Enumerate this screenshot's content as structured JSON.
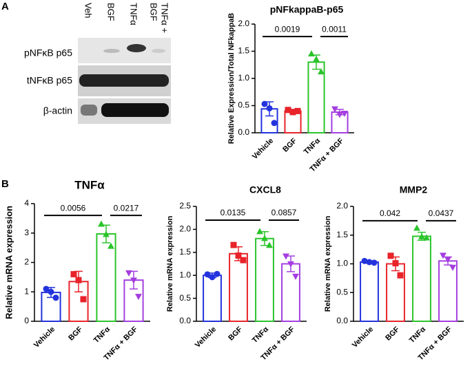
{
  "panel_labels": [
    "A",
    "B"
  ],
  "blot": {
    "lanes": [
      "Veh",
      "BGF",
      "TNFα",
      "BGF",
      "TNFα +"
    ],
    "rows": [
      "pNFκB p65",
      "tNFκB p65",
      "β-actin"
    ]
  },
  "chart_data": [
    {
      "type": "bar",
      "title": "pNFkappaB-p65",
      "ylabel": "Relative Expression/Total NFkappaB",
      "categories": [
        "Vehicle",
        "BGF",
        "TNFα",
        "TNFα + BGF"
      ],
      "colors": [
        "#2233dd",
        "#e8232a",
        "#2bc42b",
        "#a43ee0"
      ],
      "markers": [
        "circle",
        "square",
        "triangle-up",
        "triangle-down"
      ],
      "values": [
        0.44,
        0.4,
        1.3,
        0.38
      ],
      "errors": [
        0.13,
        0.03,
        0.13,
        0.05
      ],
      "points": [
        [
          0.53,
          0.45,
          0.18
        ],
        [
          0.42,
          0.38,
          0.4
        ],
        [
          1.45,
          1.35,
          1.12
        ],
        [
          0.44,
          0.34,
          0.36
        ]
      ],
      "ylim": [
        0,
        2
      ],
      "yticks": [
        {
          "value": 0,
          "label": "0.0"
        },
        {
          "value": 0.5,
          "label": "0.5"
        },
        {
          "value": 1,
          "label": "1.0"
        },
        {
          "value": 1.5,
          "label": "1.5"
        },
        {
          "value": 2,
          "label": "2.0"
        }
      ],
      "annotations": [
        {
          "label": "0.0019",
          "from": "Vehicle",
          "to": "TNFα",
          "y": 1.77
        },
        {
          "label": "0.0011",
          "from": "TNFα",
          "to": "TNFα + BGF",
          "y": 1.77
        }
      ]
    },
    {
      "type": "bar",
      "title": "TNFα",
      "ylabel": "Relative mRNA expression",
      "categories": [
        "Vehicle",
        "BGF",
        "TNFα",
        "TNFα + BGF"
      ],
      "colors": [
        "#2233dd",
        "#e8232a",
        "#2bc42b",
        "#a43ee0"
      ],
      "markers": [
        "circle",
        "square",
        "triangle-up",
        "triangle-down"
      ],
      "values": [
        0.98,
        1.35,
        2.97,
        1.4
      ],
      "errors": [
        0.17,
        0.35,
        0.3,
        0.3
      ],
      "points": [
        [
          1.1,
          1.0,
          0.8
        ],
        [
          1.6,
          1.4,
          0.75
        ],
        [
          3.3,
          2.95,
          2.55
        ],
        [
          1.65,
          1.4,
          0.85
        ]
      ],
      "ylim": [
        0,
        4
      ],
      "yticks": [
        0,
        1,
        2,
        3,
        4
      ],
      "annotations": [
        {
          "label": "0.0056",
          "from": "Vehicle",
          "to": "TNFα",
          "y": 3.6
        },
        {
          "label": "0.0217",
          "from": "TNFα",
          "to": "TNFα + BGF",
          "y": 3.6
        }
      ]
    },
    {
      "type": "bar",
      "title": "CXCL8",
      "ylabel": "Relative mRNA expression",
      "categories": [
        "Vehicle",
        "BGF",
        "TNFα",
        "TNFα + BGF"
      ],
      "colors": [
        "#2233dd",
        "#e8232a",
        "#2bc42b",
        "#a43ee0"
      ],
      "markers": [
        "circle",
        "square",
        "triangle-up",
        "triangle-down"
      ],
      "values": [
        1.0,
        1.47,
        1.8,
        1.25
      ],
      "errors": [
        0.05,
        0.15,
        0.15,
        0.17
      ],
      "points": [
        [
          1.02,
          0.96,
          1.03
        ],
        [
          1.66,
          1.43,
          1.33
        ],
        [
          1.95,
          1.8,
          1.65
        ],
        [
          1.42,
          1.25,
          0.98
        ]
      ],
      "ylim": [
        0,
        2.5
      ],
      "yticks": [
        {
          "value": 0,
          "label": "0.0"
        },
        {
          "value": 0.5,
          "label": "0.5"
        },
        {
          "value": 1,
          "label": "1.0"
        },
        {
          "value": 1.5,
          "label": "1.5"
        },
        {
          "value": 2,
          "label": "2.0"
        },
        {
          "value": 2.5,
          "label": "2.5"
        }
      ],
      "annotations": [
        {
          "label": "0.0135",
          "from": "Vehicle",
          "to": "TNFα",
          "y": 2.2
        },
        {
          "label": "0.0857",
          "from": "TNFα",
          "to": "TNFα + BGF",
          "y": 2.2
        }
      ]
    },
    {
      "type": "bar",
      "title": "MMP2",
      "ylabel": "Relative mRNA expression",
      "categories": [
        "Vehicle",
        "BGF",
        "TNFα",
        "TNFα + BGF"
      ],
      "colors": [
        "#2233dd",
        "#e8232a",
        "#2bc42b",
        "#a43ee0"
      ],
      "markers": [
        "circle",
        "square",
        "triangle-up",
        "triangle-down"
      ],
      "values": [
        1.03,
        1.0,
        1.48,
        1.05
      ],
      "errors": [
        0.02,
        0.12,
        0.07,
        0.07
      ],
      "points": [
        [
          1.05,
          1.03,
          1.02
        ],
        [
          1.14,
          1.01,
          0.8
        ],
        [
          1.62,
          1.47,
          1.45
        ],
        [
          1.15,
          1.08,
          0.94
        ]
      ],
      "ylim": [
        0,
        2
      ],
      "yticks": [
        {
          "value": 0,
          "label": "0.0"
        },
        {
          "value": 0.5,
          "label": "0.5"
        },
        {
          "value": 1,
          "label": "1.0"
        },
        {
          "value": 1.5,
          "label": "1.5"
        },
        {
          "value": 2,
          "label": "2.0"
        }
      ],
      "annotations": [
        {
          "label": "0.042",
          "from": "Vehicle",
          "to": "TNFα",
          "y": 1.75
        },
        {
          "label": "0.0437",
          "from": "TNFα",
          "to": "TNFα + BGF",
          "y": 1.75
        }
      ]
    }
  ]
}
